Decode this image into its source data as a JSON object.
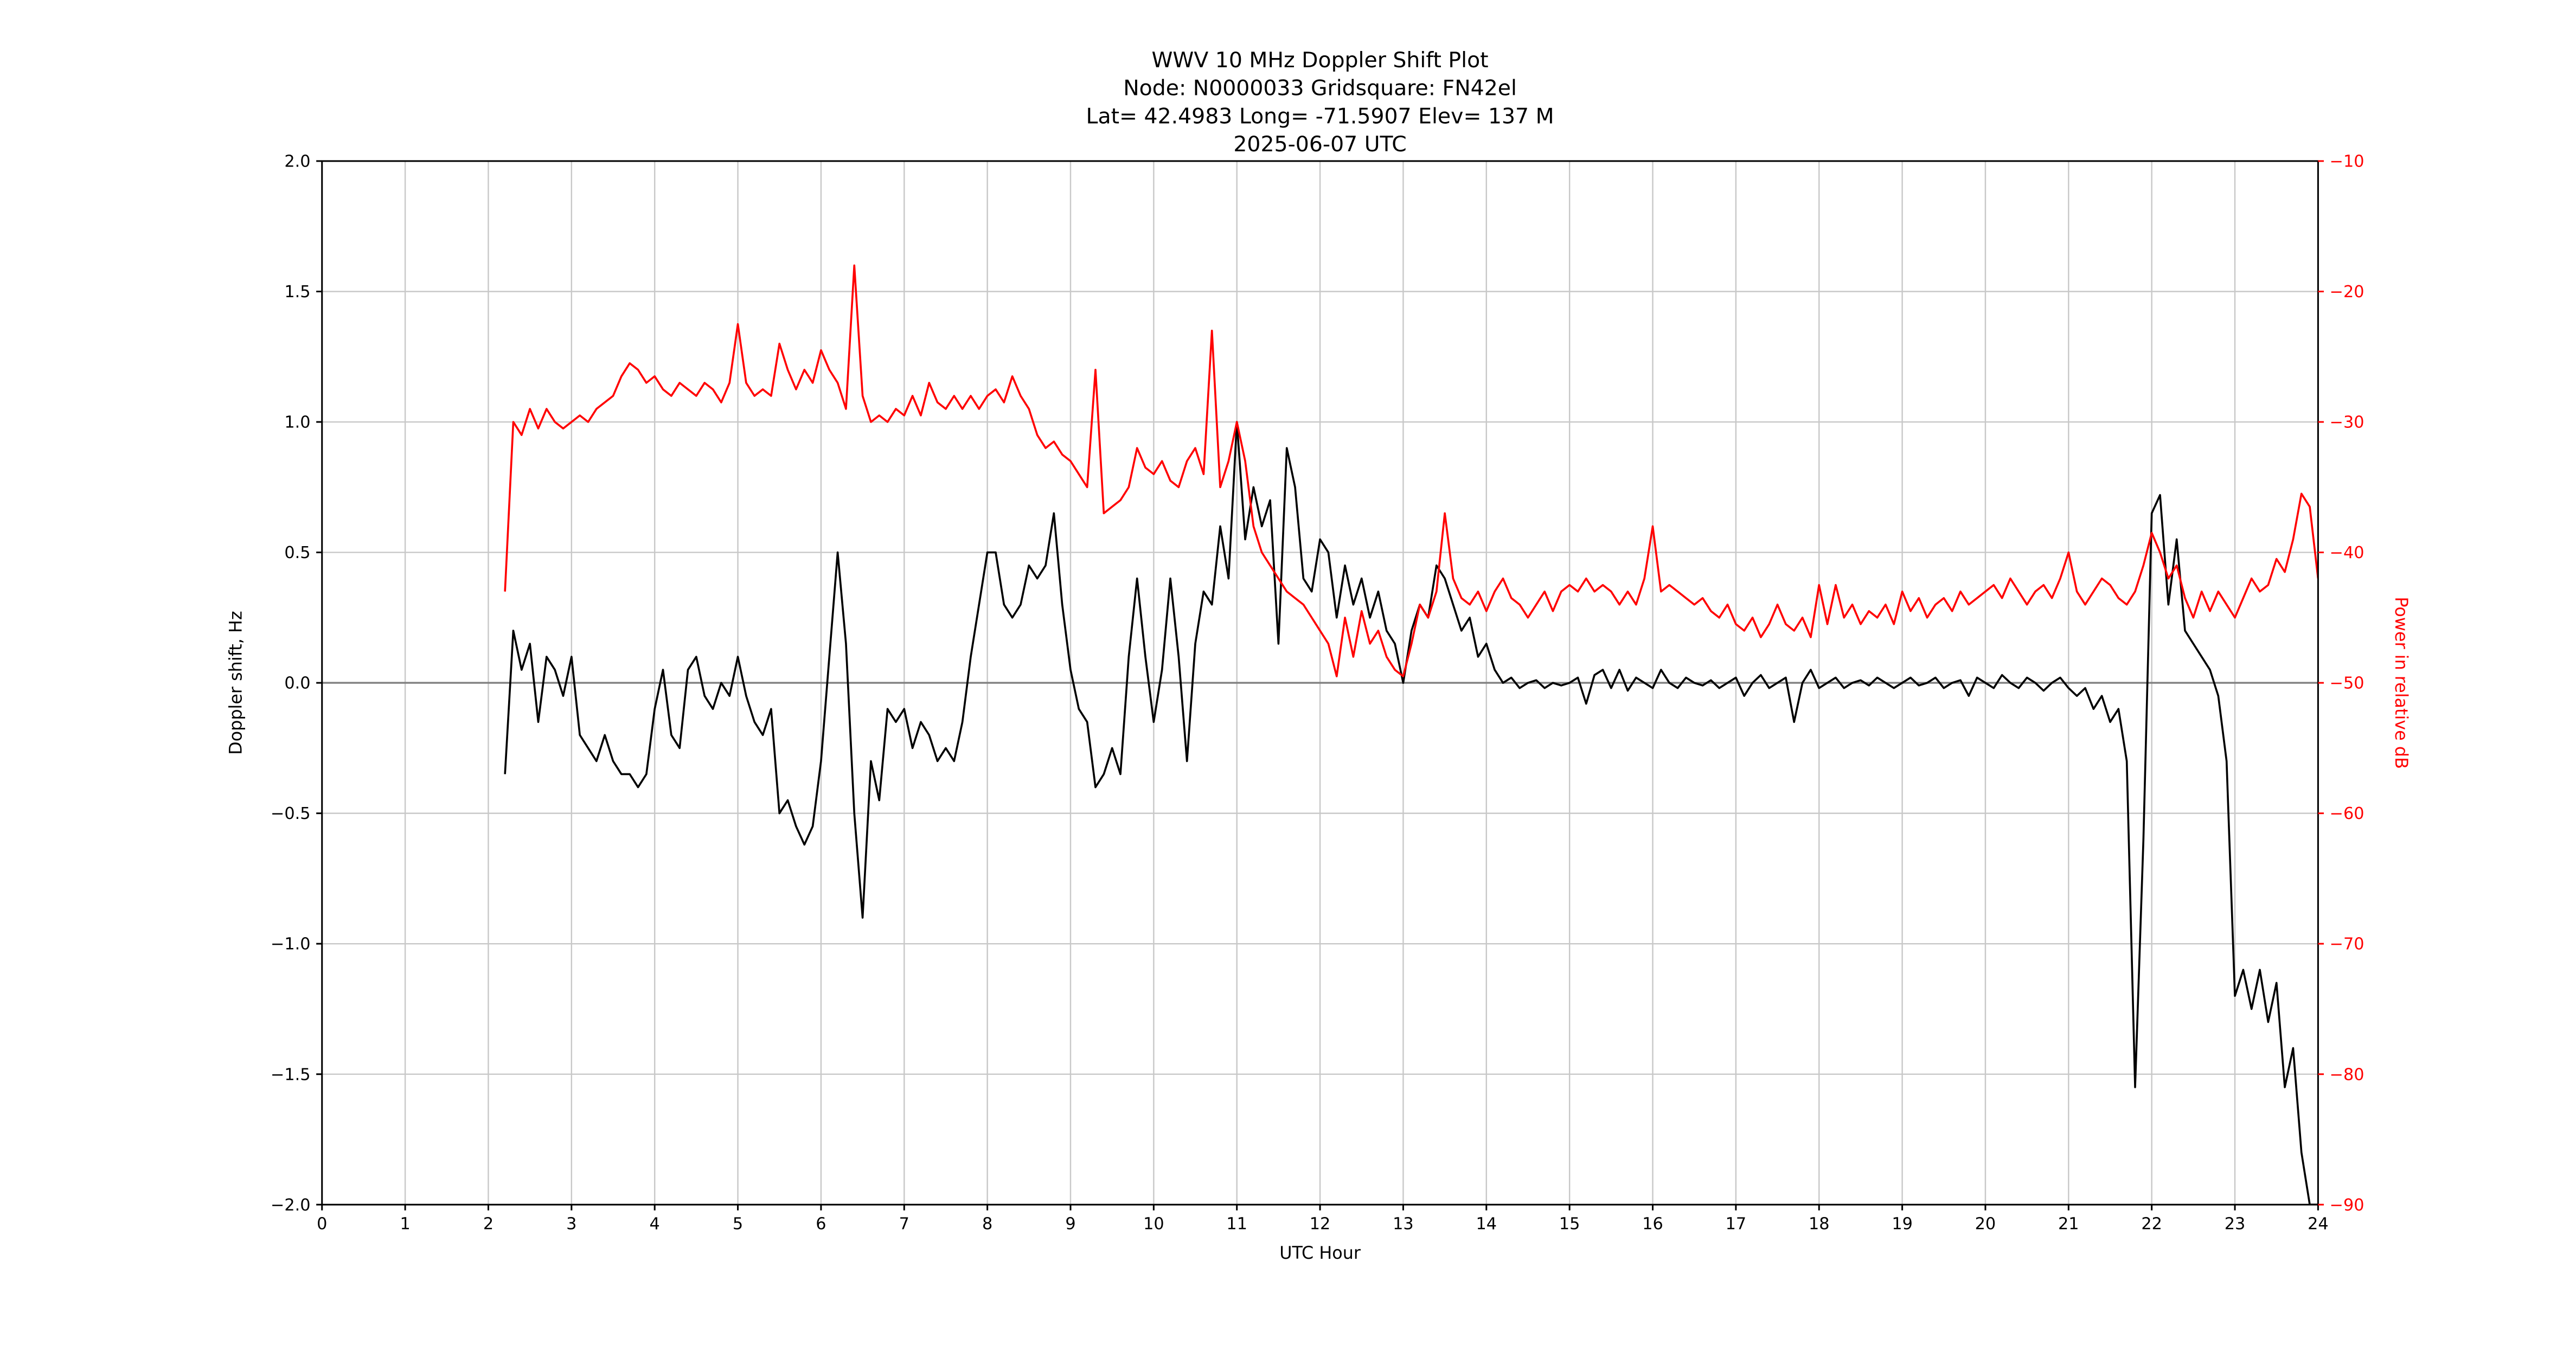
{
  "chart_data": {
    "type": "line",
    "title_lines": [
      "WWV 10 MHz Doppler Shift Plot",
      "Node:  N0000033     Gridsquare:  FN42el",
      "Lat= 42.4983    Long= -71.5907    Elev= 137 M",
      "2025-06-07  UTC"
    ],
    "xlabel": "UTC Hour",
    "ylabel_left": "Doppler shift, Hz",
    "ylabel_right": "Power in relative dB",
    "xlim": [
      0,
      24
    ],
    "ylim_left": [
      -2.0,
      2.0
    ],
    "ylim_right": [
      -90,
      -10
    ],
    "xticks": [
      0,
      1,
      2,
      3,
      4,
      5,
      6,
      7,
      8,
      9,
      10,
      11,
      12,
      13,
      14,
      15,
      16,
      17,
      18,
      19,
      20,
      21,
      22,
      23,
      24
    ],
    "yticks_left": [
      -2.0,
      -1.5,
      -1.0,
      -0.5,
      0.0,
      0.5,
      1.0,
      1.5,
      2.0
    ],
    "yticks_right": [
      -90,
      -80,
      -70,
      -60,
      -50,
      -40,
      -30,
      -20,
      -10
    ],
    "grid": true,
    "legend": "none",
    "colors": {
      "doppler_line": "#000000",
      "power_line": "#ff0000",
      "grid_line": "#c8c8c8",
      "zero_line": "#808080",
      "spine": "#000000",
      "right_axis_text": "#ff0000"
    },
    "x_start": 2.2,
    "x_step": 0.1,
    "series": [
      {
        "name": "Doppler shift",
        "axis": "left",
        "color": "#000000",
        "values": [
          -0.35,
          0.2,
          0.05,
          0.15,
          -0.15,
          0.1,
          0.05,
          -0.05,
          0.1,
          -0.2,
          -0.25,
          -0.3,
          -0.2,
          -0.3,
          -0.35,
          -0.35,
          -0.4,
          -0.35,
          -0.1,
          0.05,
          -0.2,
          -0.25,
          0.05,
          0.1,
          -0.05,
          -0.1,
          0.0,
          -0.05,
          0.1,
          -0.05,
          -0.15,
          -0.2,
          -0.1,
          -0.5,
          -0.45,
          -0.55,
          -0.62,
          -0.55,
          -0.3,
          0.1,
          0.5,
          0.15,
          -0.5,
          -0.9,
          -0.3,
          -0.45,
          -0.1,
          -0.15,
          -0.1,
          -0.25,
          -0.15,
          -0.2,
          -0.3,
          -0.25,
          -0.3,
          -0.15,
          0.1,
          0.3,
          0.5,
          0.5,
          0.3,
          0.25,
          0.3,
          0.45,
          0.4,
          0.45,
          0.65,
          0.3,
          0.05,
          -0.1,
          -0.15,
          -0.4,
          -0.35,
          -0.25,
          -0.35,
          0.1,
          0.4,
          0.1,
          -0.15,
          0.05,
          0.4,
          0.1,
          -0.3,
          0.15,
          0.35,
          0.3,
          0.6,
          0.4,
          1.0,
          0.55,
          0.75,
          0.6,
          0.7,
          0.15,
          0.9,
          0.75,
          0.4,
          0.35,
          0.55,
          0.5,
          0.25,
          0.45,
          0.3,
          0.4,
          0.25,
          0.35,
          0.2,
          0.15,
          0.0,
          0.2,
          0.3,
          0.25,
          0.45,
          0.4,
          0.3,
          0.2,
          0.25,
          0.1,
          0.15,
          0.05,
          0.0,
          0.02,
          -0.02,
          0.0,
          0.01,
          -0.02,
          0.0,
          -0.01,
          0.0,
          0.02,
          -0.08,
          0.03,
          0.05,
          -0.02,
          0.05,
          -0.03,
          0.02,
          0.0,
          -0.02,
          0.05,
          0.0,
          -0.02,
          0.02,
          0.0,
          -0.01,
          0.01,
          -0.02,
          0.0,
          0.02,
          -0.05,
          0.0,
          0.03,
          -0.02,
          0.0,
          0.02,
          -0.15,
          0.0,
          0.05,
          -0.02,
          0.0,
          0.02,
          -0.02,
          0.0,
          0.01,
          -0.01,
          0.02,
          0.0,
          -0.02,
          0.0,
          0.02,
          -0.01,
          0.0,
          0.02,
          -0.02,
          0.0,
          0.01,
          -0.05,
          0.02,
          0.0,
          -0.02,
          0.03,
          0.0,
          -0.02,
          0.02,
          0.0,
          -0.03,
          0.0,
          0.02,
          -0.02,
          -0.05,
          -0.02,
          -0.1,
          -0.05,
          -0.15,
          -0.1,
          -0.3,
          -1.55,
          -0.6,
          0.65,
          0.72,
          0.3,
          0.55,
          0.2,
          0.15,
          0.1,
          0.05,
          -0.05,
          -0.3,
          -1.2,
          -1.1,
          -1.25,
          -1.1,
          -1.3,
          -1.15,
          -1.55,
          -1.4,
          -1.8,
          -2.0,
          -2.0
        ]
      },
      {
        "name": "Power",
        "axis": "right",
        "color": "#ff0000",
        "values": [
          -43,
          -30,
          -31,
          -29,
          -30.5,
          -29,
          -30,
          -30.5,
          -30,
          -29.5,
          -30,
          -29,
          -28.5,
          -28,
          -26.5,
          -25.5,
          -26,
          -27,
          -26.5,
          -27.5,
          -28,
          -27,
          -27.5,
          -28,
          -27,
          -27.5,
          -28.5,
          -27,
          -22.5,
          -27,
          -28,
          -27.5,
          -28,
          -24,
          -26,
          -27.5,
          -26,
          -27,
          -24.5,
          -26,
          -27,
          -29,
          -18,
          -28,
          -30,
          -29.5,
          -30,
          -29,
          -29.5,
          -28,
          -29.5,
          -27,
          -28.5,
          -29,
          -28,
          -29,
          -28,
          -29,
          -28,
          -27.5,
          -28.5,
          -26.5,
          -28,
          -29,
          -31,
          -32,
          -31.5,
          -32.5,
          -33,
          -34,
          -35,
          -26,
          -37,
          -36.5,
          -36,
          -35,
          -32,
          -33.5,
          -34,
          -33,
          -34.5,
          -35,
          -33,
          -32,
          -34,
          -23,
          -35,
          -33,
          -30,
          -33,
          -38,
          -40,
          -41,
          -42,
          -43,
          -43.5,
          -44,
          -45,
          -46,
          -47,
          -49.5,
          -45,
          -48,
          -44.5,
          -47,
          -46,
          -48,
          -49,
          -49.5,
          -47,
          -44,
          -45,
          -43,
          -37,
          -42,
          -43.5,
          -44,
          -43,
          -44.5,
          -43,
          -42,
          -43.5,
          -44,
          -45,
          -44,
          -43,
          -44.5,
          -43,
          -42.5,
          -43,
          -42,
          -43,
          -42.5,
          -43,
          -44,
          -43,
          -44,
          -42,
          -38,
          -43,
          -42.5,
          -43,
          -43.5,
          -44,
          -43.5,
          -44.5,
          -45,
          -44,
          -45.5,
          -46,
          -45,
          -46.5,
          -45.5,
          -44,
          -45.5,
          -46,
          -45,
          -46.5,
          -42.5,
          -45.5,
          -42.5,
          -45,
          -44,
          -45.5,
          -44.5,
          -45,
          -44,
          -45.5,
          -43,
          -44.5,
          -43.5,
          -45,
          -44,
          -43.5,
          -44.5,
          -43,
          -44,
          -43.5,
          -43,
          -42.5,
          -43.5,
          -42,
          -43,
          -44,
          -43,
          -42.5,
          -43.5,
          -42,
          -40,
          -43,
          -44,
          -43,
          -42,
          -42.5,
          -43.5,
          -44,
          -43,
          -41,
          -38.5,
          -40,
          -42,
          -41,
          -43.5,
          -45,
          -43,
          -44.5,
          -43,
          -44,
          -45,
          -43.5,
          -42,
          -43,
          -42.5,
          -40.5,
          -41.5,
          -39,
          -35.5,
          -36.5,
          -42
        ]
      }
    ]
  }
}
